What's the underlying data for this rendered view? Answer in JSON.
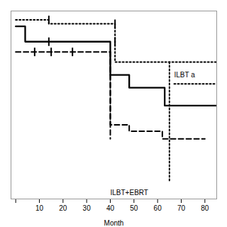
{
  "chart_data": {
    "type": "line",
    "xlabel": "Month",
    "xlim": [
      -2,
      85
    ],
    "ylim": [
      -0.35,
      1.12
    ],
    "xticks": [
      {
        "value": 0,
        "label": null
      },
      10,
      20,
      30,
      40,
      50,
      60,
      70,
      80
    ],
    "tick_labels": "x",
    "grid": false,
    "series": [
      {
        "type": "line",
        "x": [
          0,
          4,
          4,
          40,
          40,
          48,
          48,
          63,
          63,
          85
        ],
        "values": [
          1.0,
          1.0,
          0.88,
          0.88,
          0.62,
          0.62,
          0.52,
          0.52,
          0.38,
          0.38
        ],
        "color": "black",
        "line_style": "solid"
      },
      {
        "type": "line",
        "x": [
          0,
          14,
          14,
          42,
          42,
          85
        ],
        "values": [
          1.05,
          1.05,
          1.02,
          1.02,
          0.72,
          0.72
        ],
        "color": "black",
        "line_style": "dotted"
      },
      {
        "type": "line",
        "x": [
          0,
          40,
          40,
          48,
          48,
          62,
          62,
          80
        ],
        "values": [
          0.8,
          0.8,
          0.23,
          0.23,
          0.18,
          0.18,
          0.12,
          0.12
        ],
        "color": "black",
        "line_style": "dashed"
      },
      {
        "type": "line",
        "x": [
          65,
          65
        ],
        "values": [
          0.72,
          -0.22
        ],
        "color": "black",
        "line_style": "dotted"
      },
      {
        "type": "line",
        "x": [
          40,
          40
        ],
        "values": [
          0.8,
          0.12
        ],
        "color": "black",
        "line_style": "dashed"
      },
      {
        "type": "scatter",
        "x": [
          14,
          42
        ],
        "values": [
          0.88,
          0.88
        ],
        "color": "black",
        "marker": "|"
      },
      {
        "type": "scatter",
        "x": [
          14,
          42
        ],
        "values": [
          1.05,
          1.02
        ],
        "color": "black",
        "marker": "|"
      },
      {
        "type": "scatter",
        "x": [
          8,
          15,
          24
        ],
        "values": [
          0.8,
          0.8,
          0.8
        ],
        "color": "black",
        "marker": "|"
      },
      {
        "type": "line",
        "x": [
          67,
          85
        ],
        "values": [
          0.55,
          0.55
        ],
        "color": "black",
        "line_style": "dotted"
      }
    ],
    "annotations": [
      {
        "text": "ILBT a",
        "x": 67,
        "y": 0.62
      },
      {
        "text": "ILBT+EBRT",
        "x": 40,
        "y": -0.3
      }
    ]
  }
}
